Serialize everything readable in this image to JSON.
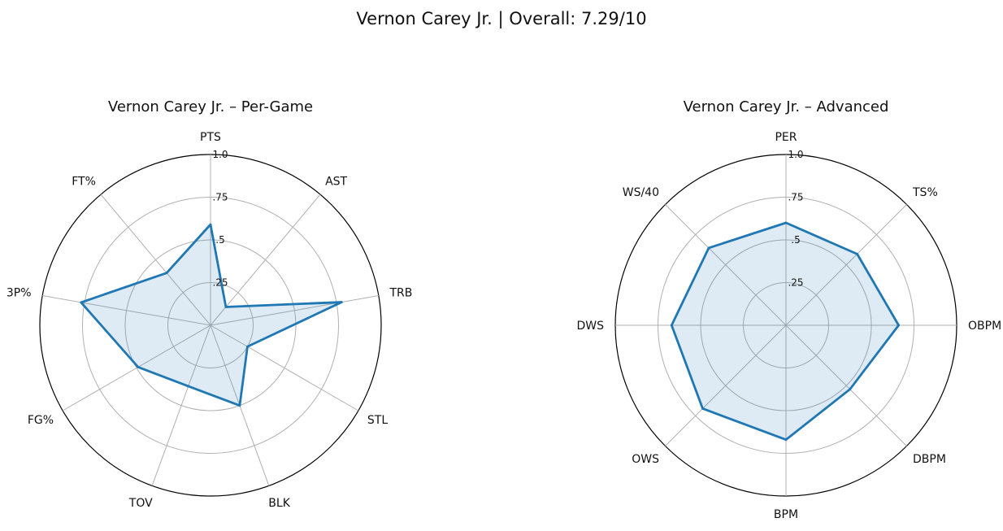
{
  "figure": {
    "title": "Vernon Carey Jr. | Overall: 7.29/10"
  },
  "colors": {
    "series": "#1f77b4",
    "fill": "#1f77b4",
    "grid": "#b0b0b0",
    "outer": "#000000"
  },
  "chart_data": [
    {
      "type": "radar",
      "title": "Vernon Carey Jr. – Per-Game",
      "categories": [
        "PTS",
        "AST",
        "TRB",
        "STL",
        "BLK",
        "TOV",
        "FG%",
        "3P%",
        "FT%"
      ],
      "values": [
        0.59,
        0.14,
        0.78,
        0.25,
        0.5,
        0.38,
        0.49,
        0.77,
        0.4
      ],
      "rlim": [
        0,
        1.0
      ],
      "rticks": [
        0.25,
        0.5,
        0.75,
        1.0
      ],
      "rtick_labels": [
        ".25",
        ".5",
        ".75",
        "1.0"
      ],
      "grid": true
    },
    {
      "type": "radar",
      "title": "Vernon Carey Jr. – Advanced",
      "categories": [
        "PER",
        "TS%",
        "OBPM",
        "DBPM",
        "BPM",
        "OWS",
        "DWS",
        "WS/40"
      ],
      "values": [
        0.6,
        0.59,
        0.66,
        0.53,
        0.67,
        0.69,
        0.67,
        0.64
      ],
      "rlim": [
        0,
        1.0
      ],
      "rticks": [
        0.25,
        0.5,
        0.75,
        1.0
      ],
      "rtick_labels": [
        ".25",
        ".5",
        ".75",
        "1.0"
      ],
      "grid": true
    }
  ]
}
